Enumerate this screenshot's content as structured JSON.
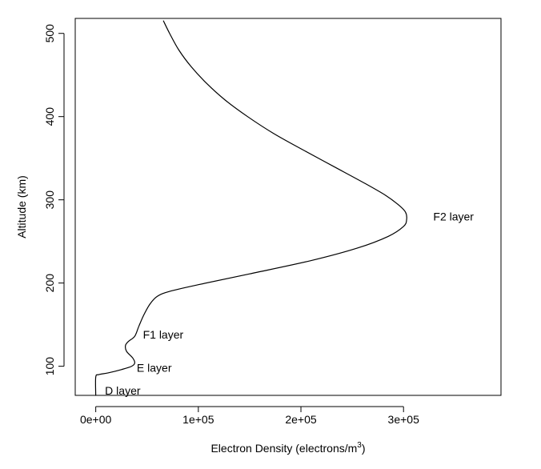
{
  "chart_data": {
    "type": "line",
    "orientation": "vertical-profile",
    "title": "",
    "xlabel": "Electron Density (electrons/m",
    "xlabel_superscript": "3",
    "xlabel_suffix": ")",
    "ylabel": "Altitude (km)",
    "xlim": [
      -20000,
      395000
    ],
    "ylim": [
      65,
      518
    ],
    "xticks": [
      {
        "value": 0,
        "label": "0e+00"
      },
      {
        "value": 100000,
        "label": "1e+05"
      },
      {
        "value": 200000,
        "label": "2e+05"
      },
      {
        "value": 300000,
        "label": "3e+05"
      }
    ],
    "yticks": [
      {
        "value": 100,
        "label": "100"
      },
      {
        "value": 200,
        "label": "200"
      },
      {
        "value": 300,
        "label": "300"
      },
      {
        "value": 400,
        "label": "400"
      },
      {
        "value": 500,
        "label": "500"
      }
    ],
    "grid": false,
    "legend": "none",
    "series": [
      {
        "color": "#000000",
        "points": [
          {
            "density": 0,
            "altitude": 65
          },
          {
            "density": 0,
            "altitude": 87
          },
          {
            "density": 3000,
            "altitude": 90
          },
          {
            "density": 12000,
            "altitude": 92
          },
          {
            "density": 25000,
            "altitude": 96
          },
          {
            "density": 35000,
            "altitude": 100
          },
          {
            "density": 38000,
            "altitude": 104
          },
          {
            "density": 36000,
            "altitude": 110
          },
          {
            "density": 30000,
            "altitude": 118
          },
          {
            "density": 29000,
            "altitude": 125
          },
          {
            "density": 32000,
            "altitude": 130
          },
          {
            "density": 38000,
            "altitude": 136
          },
          {
            "density": 42000,
            "altitude": 148
          },
          {
            "density": 47000,
            "altitude": 162
          },
          {
            "density": 53000,
            "altitude": 175
          },
          {
            "density": 60000,
            "altitude": 184
          },
          {
            "density": 72000,
            "altitude": 190
          },
          {
            "density": 100000,
            "altitude": 198
          },
          {
            "density": 150000,
            "altitude": 211
          },
          {
            "density": 210000,
            "altitude": 227
          },
          {
            "density": 255000,
            "altitude": 242
          },
          {
            "density": 285000,
            "altitude": 256
          },
          {
            "density": 300000,
            "altitude": 268
          },
          {
            "density": 303000,
            "altitude": 276
          },
          {
            "density": 302000,
            "altitude": 285
          },
          {
            "density": 296000,
            "altitude": 293
          },
          {
            "density": 283000,
            "altitude": 305
          },
          {
            "density": 262000,
            "altitude": 320
          },
          {
            "density": 232000,
            "altitude": 340
          },
          {
            "density": 202000,
            "altitude": 360
          },
          {
            "density": 173000,
            "altitude": 380
          },
          {
            "density": 148000,
            "altitude": 400
          },
          {
            "density": 126000,
            "altitude": 420
          },
          {
            "density": 108000,
            "altitude": 440
          },
          {
            "density": 93000,
            "altitude": 460
          },
          {
            "density": 81000,
            "altitude": 480
          },
          {
            "density": 72000,
            "altitude": 500
          },
          {
            "density": 66000,
            "altitude": 515
          }
        ]
      }
    ],
    "annotations": [
      {
        "text": "F2 layer",
        "x": 329000,
        "y": 280
      },
      {
        "text": "F1 layer",
        "x": 46000,
        "y": 138
      },
      {
        "text": "E layer",
        "x": 40000,
        "y": 98
      },
      {
        "text": "D layer",
        "x": 9000,
        "y": 71
      }
    ]
  }
}
